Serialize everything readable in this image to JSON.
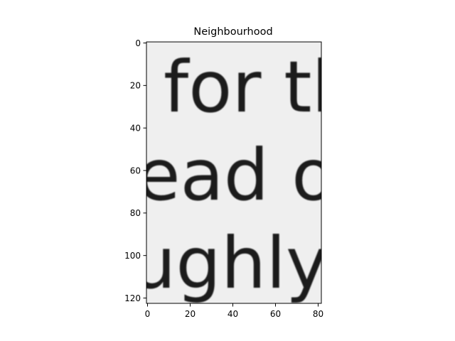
{
  "chart_data": {
    "type": "heatmap",
    "title": "Neighbourhood",
    "xlabel": "",
    "ylabel": "",
    "colormap": "grayscale",
    "image_size": {
      "cols": 82,
      "rows": 123
    },
    "xlim": [
      0,
      82
    ],
    "ylim": [
      123,
      0
    ],
    "x_ticks": [
      0,
      20,
      40,
      60,
      80
    ],
    "y_ticks": [
      0,
      20,
      40,
      60,
      80,
      100,
      120
    ],
    "grid": false,
    "image_content": {
      "kind": "scanned-text-crop",
      "lines": [
        "for th",
        "ead o",
        "ughly"
      ]
    }
  }
}
